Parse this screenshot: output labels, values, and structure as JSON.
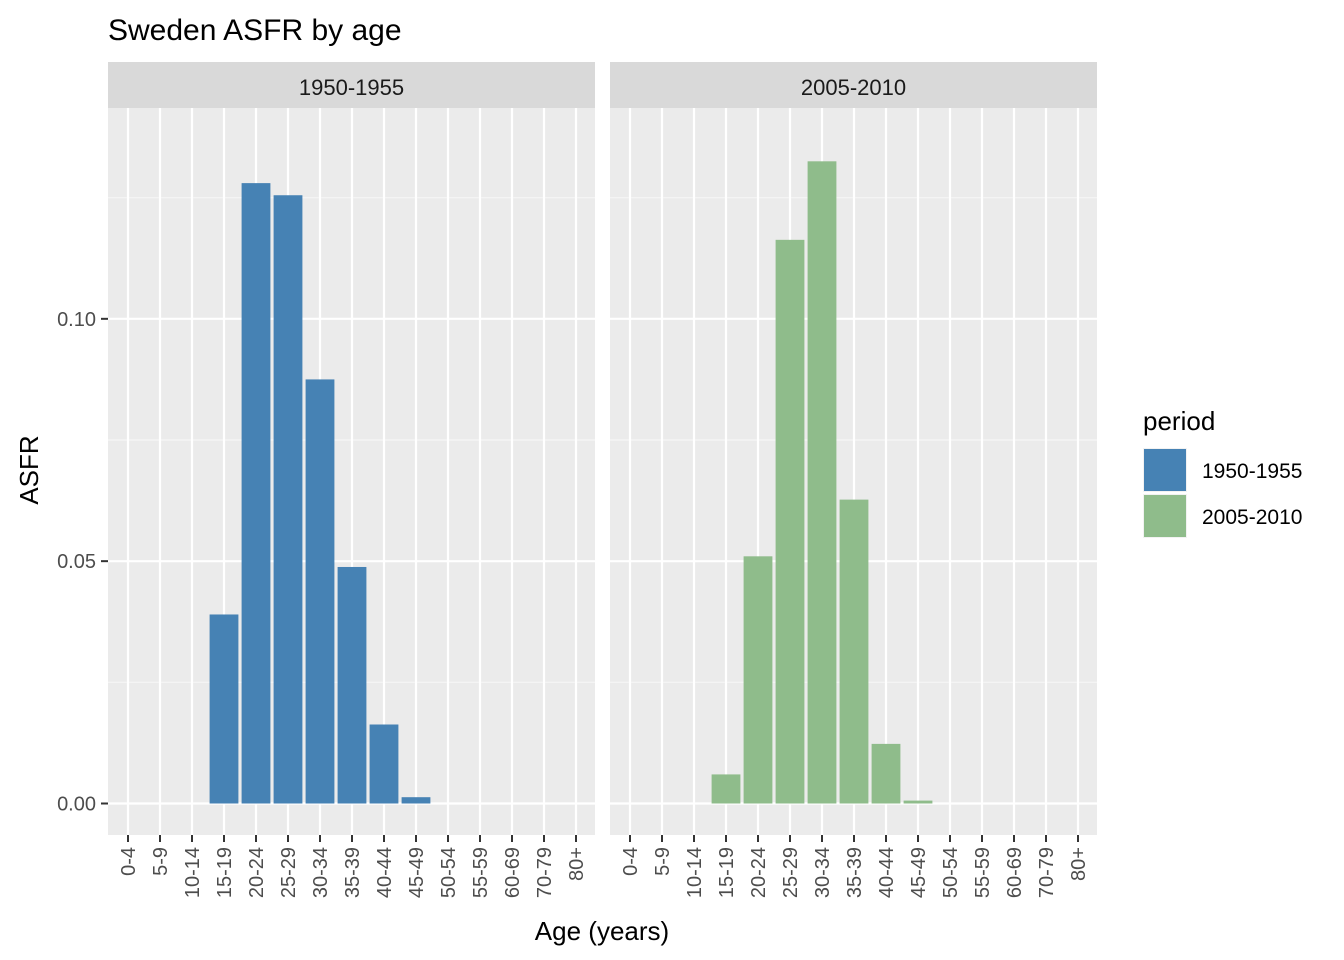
{
  "chart_data": {
    "type": "bar",
    "title": "Sweden ASFR by age",
    "xlabel": "Age (years)",
    "ylabel": "ASFR",
    "ylim": [
      -0.0065,
      0.1435
    ],
    "yticks": [
      0.0,
      0.05,
      0.1
    ],
    "ytick_labels": [
      "0.00",
      "0.05",
      "0.10"
    ],
    "grid": true,
    "categories": [
      "0-4",
      "5-9",
      "10-14",
      "15-19",
      "20-24",
      "25-29",
      "30-34",
      "35-39",
      "40-44",
      "45-49",
      "50-54",
      "55-59",
      "60-69",
      "70-79",
      "80+"
    ],
    "legend": {
      "title": "period",
      "placement": "right",
      "entries": [
        "1950-1955",
        "2005-2010"
      ]
    },
    "panels": [
      {
        "name": "1950-1955",
        "color": "#4682B4",
        "values": [
          0,
          0,
          0,
          0.039,
          0.128,
          0.1255,
          0.0875,
          0.0488,
          0.0163,
          0.0013,
          0,
          0,
          0,
          0,
          0
        ]
      },
      {
        "name": "2005-2010",
        "color": "#8FBC8B",
        "values": [
          0,
          0,
          0,
          0.006,
          0.051,
          0.1163,
          0.1325,
          0.0627,
          0.0123,
          0.0006,
          0,
          0,
          0,
          0,
          0
        ]
      }
    ]
  }
}
